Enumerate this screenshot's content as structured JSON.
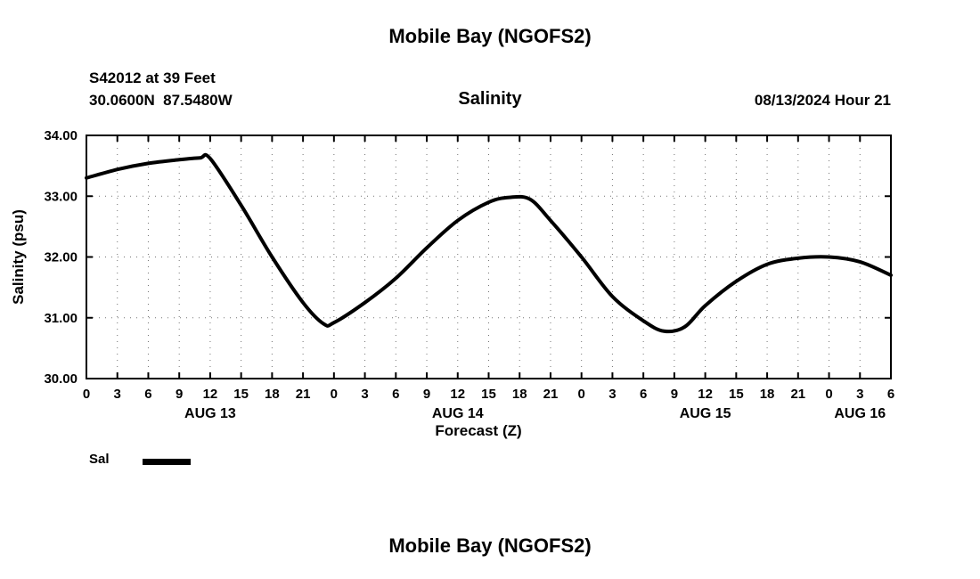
{
  "header": {
    "title": "Mobile Bay (NGOFS2)",
    "station": "S42012 at 39 Feet",
    "coordinates": "30.0600N  87.5480W",
    "subtitle": "Salinity",
    "datetime": "08/13/2024 Hour 21"
  },
  "legend": {
    "label": "Sal"
  },
  "footer": {
    "next_chart_title": "Mobile Bay (NGOFS2)"
  },
  "chart_data": {
    "type": "line",
    "title": "Salinity",
    "xlabel": "Forecast (Z)",
    "ylabel": "Salinity (psu)",
    "xlim": [
      0,
      78
    ],
    "ylim": [
      30,
      34
    ],
    "grid": true,
    "legend_position": "bottom-left",
    "line_color": "#000000",
    "x_ticks": [
      0,
      3,
      6,
      9,
      12,
      15,
      18,
      21,
      24,
      27,
      30,
      33,
      36,
      39,
      42,
      45,
      48,
      51,
      54,
      57,
      60,
      63,
      66,
      69,
      72,
      75,
      78
    ],
    "x_tick_labels": [
      "0",
      "3",
      "6",
      "9",
      "12",
      "15",
      "18",
      "21",
      "0",
      "3",
      "6",
      "9",
      "12",
      "15",
      "18",
      "21",
      "0",
      "3",
      "6",
      "9",
      "12",
      "15",
      "18",
      "21",
      "0",
      "3",
      "6"
    ],
    "y_ticks": [
      30,
      31,
      32,
      33,
      34
    ],
    "y_tick_labels": [
      "30.00",
      "31.00",
      "32.00",
      "33.00",
      "34.00"
    ],
    "day_labels": [
      {
        "label": "AUG 13",
        "hour": 12
      },
      {
        "label": "AUG 14",
        "hour": 36
      },
      {
        "label": "AUG 15",
        "hour": 60
      },
      {
        "label": "AUG 16",
        "hour": 75
      }
    ],
    "series": [
      {
        "name": "Sal",
        "x": [
          0,
          3,
          6,
          9,
          11,
          12,
          15,
          18,
          21,
          23,
          24,
          27,
          30,
          33,
          36,
          39,
          41,
          43,
          45,
          48,
          51,
          54,
          56,
          58,
          60,
          63,
          66,
          69,
          72,
          75,
          78
        ],
        "y": [
          33.3,
          33.44,
          33.54,
          33.6,
          33.63,
          33.62,
          32.85,
          32.0,
          31.25,
          30.9,
          30.92,
          31.25,
          31.65,
          32.15,
          32.6,
          32.9,
          32.98,
          32.95,
          32.6,
          32.0,
          31.35,
          30.95,
          30.78,
          30.85,
          31.2,
          31.6,
          31.88,
          31.98,
          32.0,
          31.92,
          31.7
        ]
      }
    ]
  }
}
